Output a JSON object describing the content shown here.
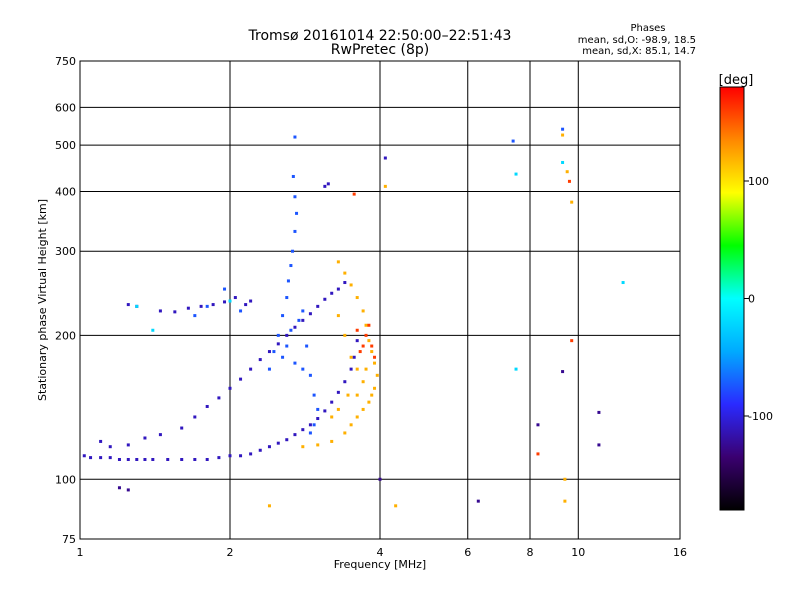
{
  "chart_data": {
    "type": "scatter",
    "title": "Tromsø 20161014 22:50:00–22:51:43",
    "subtitle": "RwPretec (8p)",
    "xlabel": "Frequency [MHz]",
    "ylabel": "Stationary phase Virtual Height [km]",
    "x_scale": "log",
    "y_scale": "log",
    "xlim": [
      1,
      16
    ],
    "ylim": [
      75,
      750
    ],
    "x_ticks": [
      1,
      2,
      4,
      6,
      8,
      10,
      16
    ],
    "y_ticks": [
      75,
      100,
      200,
      300,
      400,
      500,
      600,
      750
    ],
    "grid": true,
    "phases_box": {
      "heading": "Phases",
      "line_o": "mean, sd,O: -98.9, 18.5",
      "line_x": "mean, sd,X:  85.1, 14.7"
    },
    "colorbar": {
      "label": "[deg]",
      "range": [
        -180,
        180
      ],
      "ticks": [
        100,
        0,
        -100
      ],
      "colors": [
        "#000000",
        "#3a0070",
        "#2a2aff",
        "#00aaff",
        "#00ffff",
        "#00ff00",
        "#ffff00",
        "#ff8800",
        "#ff0000"
      ]
    },
    "series": [
      {
        "color_phase_deg": -110,
        "points": [
          [
            1.02,
            112
          ],
          [
            1.05,
            111
          ],
          [
            1.1,
            111
          ],
          [
            1.15,
            111
          ],
          [
            1.2,
            110
          ],
          [
            1.25,
            110
          ],
          [
            1.3,
            110
          ],
          [
            1.35,
            110
          ],
          [
            1.4,
            110
          ],
          [
            1.5,
            110
          ],
          [
            1.6,
            110
          ],
          [
            1.7,
            110
          ],
          [
            1.8,
            110
          ],
          [
            1.9,
            111
          ],
          [
            2.0,
            112
          ],
          [
            2.1,
            112
          ],
          [
            2.2,
            113
          ],
          [
            2.3,
            115
          ],
          [
            2.4,
            117
          ],
          [
            2.5,
            119
          ],
          [
            2.6,
            121
          ],
          [
            2.7,
            124
          ],
          [
            2.8,
            127
          ],
          [
            2.9,
            130
          ],
          [
            3.0,
            134
          ],
          [
            3.1,
            139
          ],
          [
            3.2,
            145
          ],
          [
            3.3,
            152
          ],
          [
            3.4,
            160
          ],
          [
            3.5,
            170
          ],
          [
            3.55,
            180
          ],
          [
            3.6,
            195
          ],
          [
            1.1,
            120
          ],
          [
            1.15,
            117
          ],
          [
            1.25,
            118
          ],
          [
            1.35,
            122
          ],
          [
            1.45,
            124
          ],
          [
            1.6,
            128
          ],
          [
            1.7,
            135
          ],
          [
            1.8,
            142
          ],
          [
            1.9,
            148
          ],
          [
            2.0,
            155
          ],
          [
            2.1,
            162
          ],
          [
            2.2,
            170
          ],
          [
            2.3,
            178
          ],
          [
            2.4,
            185
          ],
          [
            2.5,
            192
          ],
          [
            2.6,
            200
          ],
          [
            2.7,
            208
          ],
          [
            2.8,
            215
          ],
          [
            2.9,
            222
          ],
          [
            3.0,
            230
          ],
          [
            3.1,
            238
          ],
          [
            3.2,
            245
          ],
          [
            3.3,
            250
          ],
          [
            3.4,
            258
          ],
          [
            1.25,
            232
          ],
          [
            1.3,
            230
          ],
          [
            1.45,
            225
          ],
          [
            1.55,
            224
          ],
          [
            1.65,
            228
          ],
          [
            1.75,
            230
          ],
          [
            1.85,
            232
          ],
          [
            1.95,
            235
          ],
          [
            2.05,
            240
          ],
          [
            2.15,
            232
          ],
          [
            2.2,
            236
          ],
          [
            3.1,
            410
          ],
          [
            3.15,
            415
          ],
          [
            4.1,
            470
          ]
        ]
      },
      {
        "color_phase_deg": -75,
        "points": [
          [
            2.5,
            200
          ],
          [
            2.55,
            220
          ],
          [
            2.6,
            240
          ],
          [
            2.62,
            260
          ],
          [
            2.65,
            280
          ],
          [
            2.67,
            300
          ],
          [
            2.7,
            330
          ],
          [
            2.72,
            360
          ],
          [
            2.7,
            390
          ],
          [
            2.68,
            430
          ],
          [
            2.6,
            190
          ],
          [
            2.65,
            205
          ],
          [
            2.75,
            215
          ],
          [
            2.8,
            225
          ],
          [
            2.85,
            190
          ],
          [
            2.7,
            175
          ],
          [
            2.8,
            170
          ],
          [
            2.9,
            165
          ],
          [
            2.95,
            150
          ],
          [
            3.0,
            140
          ],
          [
            2.95,
            130
          ],
          [
            2.9,
            125
          ],
          [
            2.55,
            180
          ],
          [
            2.45,
            185
          ],
          [
            2.4,
            170
          ],
          [
            1.8,
            230
          ],
          [
            1.95,
            250
          ],
          [
            1.7,
            220
          ],
          [
            2.1,
            225
          ],
          [
            2.7,
            520
          ],
          [
            7.4,
            510
          ],
          [
            9.3,
            540
          ]
        ]
      },
      {
        "color_phase_deg": 120,
        "points": [
          [
            2.8,
            117
          ],
          [
            3.0,
            118
          ],
          [
            3.2,
            120
          ],
          [
            3.4,
            125
          ],
          [
            3.5,
            130
          ],
          [
            3.6,
            135
          ],
          [
            3.7,
            140
          ],
          [
            3.8,
            145
          ],
          [
            3.9,
            155
          ],
          [
            3.95,
            165
          ],
          [
            3.9,
            175
          ],
          [
            3.85,
            185
          ],
          [
            3.8,
            195
          ],
          [
            3.75,
            210
          ],
          [
            3.7,
            225
          ],
          [
            3.6,
            240
          ],
          [
            3.5,
            255
          ],
          [
            3.4,
            270
          ],
          [
            3.3,
            285
          ],
          [
            3.7,
            160
          ],
          [
            3.6,
            170
          ],
          [
            3.5,
            180
          ],
          [
            3.4,
            200
          ],
          [
            3.3,
            220
          ],
          [
            3.6,
            150
          ],
          [
            3.45,
            150
          ],
          [
            3.3,
            140
          ],
          [
            3.2,
            135
          ],
          [
            3.75,
            170
          ],
          [
            3.85,
            150
          ],
          [
            4.1,
            410
          ],
          [
            9.3,
            525
          ],
          [
            9.5,
            440
          ],
          [
            9.7,
            380
          ],
          [
            9.4,
            100
          ],
          [
            9.4,
            90
          ],
          [
            2.4,
            88
          ],
          [
            4.3,
            88
          ]
        ]
      },
      {
        "color_phase_deg": 160,
        "points": [
          [
            3.75,
            200
          ],
          [
            3.7,
            190
          ],
          [
            3.8,
            210
          ],
          [
            3.85,
            190
          ],
          [
            3.6,
            205
          ],
          [
            3.9,
            180
          ],
          [
            3.65,
            185
          ],
          [
            3.55,
            395
          ],
          [
            8.3,
            113
          ],
          [
            9.7,
            195
          ],
          [
            9.6,
            420
          ]
        ]
      },
      {
        "color_phase_deg": -20,
        "points": [
          [
            7.5,
            170
          ],
          [
            7.5,
            435
          ],
          [
            9.3,
            460
          ],
          [
            12.3,
            258
          ],
          [
            1.4,
            205
          ],
          [
            1.3,
            230
          ],
          [
            2.0,
            236
          ]
        ]
      },
      {
        "color_phase_deg": -125,
        "points": [
          [
            6.3,
            90
          ],
          [
            1.2,
            96
          ],
          [
            1.25,
            95
          ],
          [
            4.0,
            100
          ],
          [
            11.0,
            138
          ],
          [
            11.0,
            118
          ],
          [
            8.3,
            130
          ],
          [
            9.3,
            168
          ]
        ]
      }
    ]
  }
}
